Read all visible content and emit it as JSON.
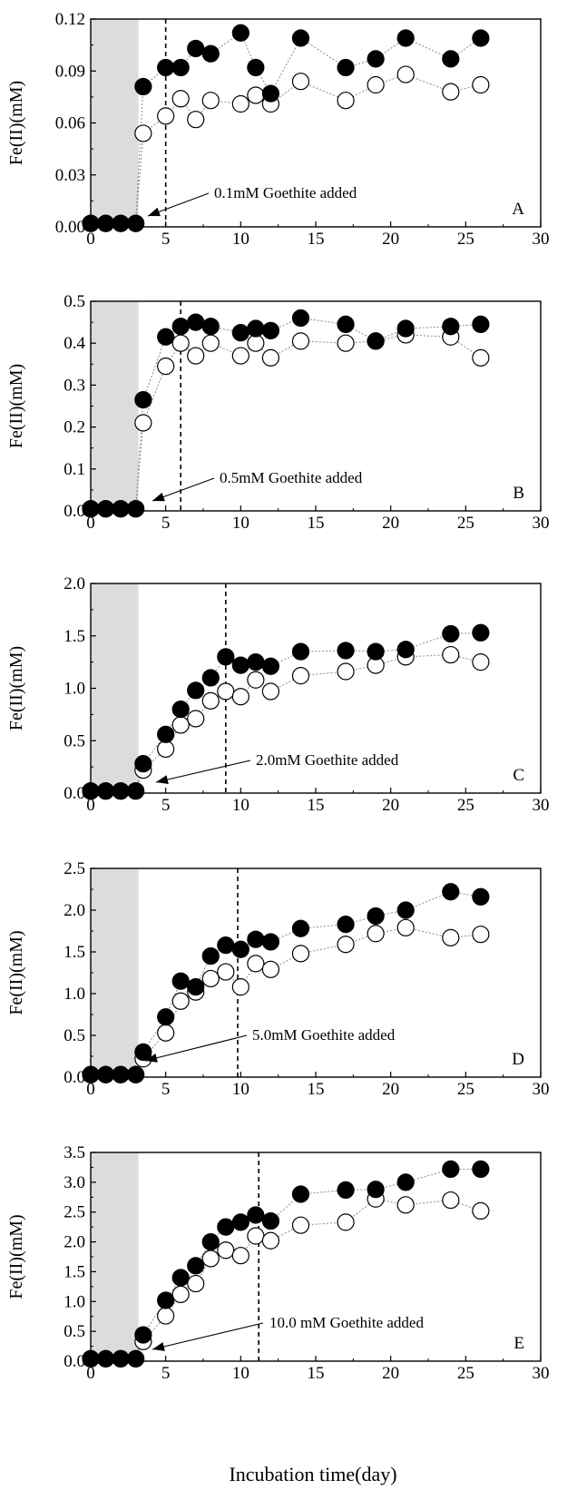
{
  "figure": {
    "xlabel": "Incubation time(day)"
  },
  "chart_data": [
    {
      "type": "scatter",
      "panel": "A",
      "ylabel": "Fe(II)(mM)",
      "xlim": [
        0,
        30
      ],
      "ylim": [
        0,
        0.12
      ],
      "xticks": [
        "0",
        "5",
        "10",
        "15",
        "20",
        "25",
        "30"
      ],
      "yticks": [
        "0.00",
        "0.03",
        "0.06",
        "0.09",
        "0.12"
      ],
      "shaded_region": [
        0,
        3
      ],
      "vline": 5,
      "annotation": "0.1mM Goethite added",
      "series": [
        {
          "style": "filled",
          "x": [
            0,
            1,
            2,
            3,
            3.5,
            5,
            6,
            7,
            8,
            10,
            11,
            12,
            14,
            17,
            19,
            21,
            24,
            26
          ],
          "y": [
            0.002,
            0.002,
            0.002,
            0.002,
            0.081,
            0.092,
            0.092,
            0.103,
            0.1,
            0.112,
            0.092,
            0.077,
            0.109,
            0.092,
            0.097,
            0.109,
            0.097,
            0.109
          ]
        },
        {
          "style": "open",
          "x": [
            0,
            1,
            2,
            3,
            3.5,
            5,
            6,
            7,
            8,
            10,
            11,
            12,
            14,
            17,
            19,
            21,
            24,
            26
          ],
          "y": [
            0.002,
            0.002,
            0.002,
            0.002,
            0.054,
            0.064,
            0.074,
            0.062,
            0.073,
            0.071,
            0.076,
            0.071,
            0.084,
            0.073,
            0.082,
            0.088,
            0.078,
            0.082
          ]
        }
      ]
    },
    {
      "type": "scatter",
      "panel": "B",
      "ylabel": "Fe(II)(mM)",
      "xlim": [
        0,
        30
      ],
      "ylim": [
        0,
        0.5
      ],
      "xticks": [
        "0",
        "5",
        "10",
        "15",
        "20",
        "25",
        "30"
      ],
      "yticks": [
        "0.0",
        "0.1",
        "0.2",
        "0.3",
        "0.4",
        "0.5"
      ],
      "shaded_region": [
        0,
        3
      ],
      "vline": 6,
      "annotation": "0.5mM Goethite added",
      "series": [
        {
          "style": "filled",
          "x": [
            0,
            1,
            2,
            3,
            3.5,
            5,
            6,
            7,
            8,
            10,
            11,
            12,
            14,
            17,
            19,
            21,
            24,
            26
          ],
          "y": [
            0.005,
            0.005,
            0.005,
            0.005,
            0.265,
            0.415,
            0.44,
            0.45,
            0.44,
            0.425,
            0.435,
            0.43,
            0.46,
            0.445,
            0.405,
            0.435,
            0.44,
            0.445
          ]
        },
        {
          "style": "open",
          "x": [
            0,
            1,
            2,
            3,
            3.5,
            5,
            6,
            7,
            8,
            10,
            11,
            12,
            14,
            17,
            19,
            21,
            24,
            26
          ],
          "y": [
            0.005,
            0.005,
            0.005,
            0.005,
            0.21,
            0.345,
            0.4,
            0.37,
            0.4,
            0.37,
            0.4,
            0.365,
            0.405,
            0.4,
            0.405,
            0.42,
            0.415,
            0.365
          ]
        }
      ]
    },
    {
      "type": "scatter",
      "panel": "C",
      "ylabel": "Fe(II)(mM)",
      "xlim": [
        0,
        30
      ],
      "ylim": [
        0,
        2.0
      ],
      "xticks": [
        "0",
        "5",
        "10",
        "15",
        "20",
        "25",
        "30"
      ],
      "yticks": [
        "0.0",
        "0.5",
        "1.0",
        "1.5",
        "2.0"
      ],
      "shaded_region": [
        0,
        3
      ],
      "vline": 9,
      "annotation": "2.0mM Goethite added",
      "series": [
        {
          "style": "filled",
          "x": [
            0,
            1,
            2,
            3,
            3.5,
            5,
            6,
            7,
            8,
            9,
            10,
            11,
            12,
            14,
            17,
            19,
            21,
            24,
            26
          ],
          "y": [
            0.02,
            0.02,
            0.02,
            0.02,
            0.28,
            0.56,
            0.8,
            0.98,
            1.1,
            1.3,
            1.22,
            1.25,
            1.21,
            1.35,
            1.36,
            1.35,
            1.37,
            1.52,
            1.53
          ]
        },
        {
          "style": "open",
          "x": [
            0,
            1,
            2,
            3,
            3.5,
            5,
            6,
            7,
            8,
            9,
            10,
            11,
            12,
            14,
            17,
            19,
            21,
            24,
            26
          ],
          "y": [
            0.02,
            0.02,
            0.02,
            0.02,
            0.22,
            0.42,
            0.65,
            0.71,
            0.88,
            0.97,
            0.92,
            1.08,
            0.97,
            1.12,
            1.16,
            1.22,
            1.3,
            1.32,
            1.25
          ]
        }
      ]
    },
    {
      "type": "scatter",
      "panel": "D",
      "ylabel": "Fe(II)(mM)",
      "xlim": [
        0,
        30
      ],
      "ylim": [
        0,
        2.5
      ],
      "xticks": [
        "0",
        "5",
        "10",
        "15",
        "20",
        "25",
        "30"
      ],
      "yticks": [
        "0.0",
        "0.5",
        "1.0",
        "1.5",
        "2.0",
        "2.5"
      ],
      "shaded_region": [
        0,
        3
      ],
      "vline": 9.8,
      "annotation": "5.0mM Goethite added",
      "series": [
        {
          "style": "filled",
          "x": [
            0,
            1,
            2,
            3,
            3.5,
            5,
            6,
            7,
            8,
            9,
            10,
            11,
            12,
            14,
            17,
            19,
            21,
            24,
            26
          ],
          "y": [
            0.03,
            0.03,
            0.03,
            0.03,
            0.3,
            0.72,
            1.15,
            1.08,
            1.45,
            1.58,
            1.53,
            1.65,
            1.62,
            1.78,
            1.83,
            1.93,
            2.0,
            2.22,
            2.16
          ]
        },
        {
          "style": "open",
          "x": [
            0,
            1,
            2,
            3,
            3.5,
            5,
            6,
            7,
            8,
            9,
            10,
            11,
            12,
            14,
            17,
            19,
            21,
            24,
            26
          ],
          "y": [
            0.03,
            0.03,
            0.03,
            0.03,
            0.22,
            0.53,
            0.91,
            1.02,
            1.18,
            1.26,
            1.08,
            1.36,
            1.29,
            1.48,
            1.59,
            1.72,
            1.79,
            1.67,
            1.71
          ]
        }
      ]
    },
    {
      "type": "scatter",
      "panel": "E",
      "ylabel": "Fe(II)(mM)",
      "xlim": [
        0,
        30
      ],
      "ylim": [
        0,
        3.5
      ],
      "xticks": [
        "0",
        "5",
        "10",
        "15",
        "20",
        "25",
        "30"
      ],
      "yticks": [
        "0.0",
        "0.5",
        "1.0",
        "1.5",
        "2.0",
        "2.5",
        "3.0",
        "3.5"
      ],
      "shaded_region": [
        0,
        3
      ],
      "vline": 11.2,
      "annotation": "10.0 mM Goethite added",
      "series": [
        {
          "style": "filled",
          "x": [
            0,
            1,
            2,
            3,
            3.5,
            5,
            6,
            7,
            8,
            9,
            10,
            11,
            12,
            14,
            17,
            19,
            21,
            24,
            26
          ],
          "y": [
            0.04,
            0.04,
            0.04,
            0.04,
            0.44,
            1.02,
            1.4,
            1.6,
            2.0,
            2.25,
            2.33,
            2.45,
            2.35,
            2.8,
            2.87,
            2.88,
            3.0,
            3.22,
            3.22
          ]
        },
        {
          "style": "open",
          "x": [
            0,
            1,
            2,
            3,
            3.5,
            5,
            6,
            7,
            8,
            9,
            10,
            11,
            12,
            14,
            17,
            19,
            21,
            24,
            26
          ],
          "y": [
            0.04,
            0.04,
            0.04,
            0.04,
            0.33,
            0.76,
            1.12,
            1.3,
            1.72,
            1.86,
            1.77,
            2.1,
            2.02,
            2.28,
            2.33,
            2.72,
            2.62,
            2.7,
            2.52
          ]
        }
      ]
    }
  ]
}
